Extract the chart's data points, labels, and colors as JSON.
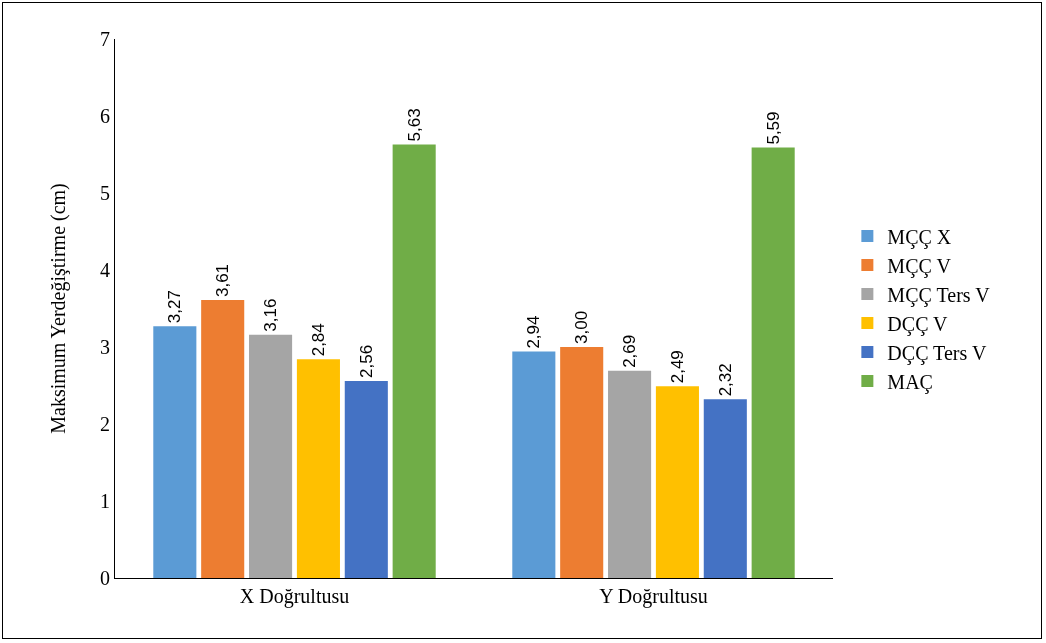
{
  "chart_data": {
    "type": "bar",
    "ylabel": "Maksimum Yerdeğiştirme (cm)",
    "categories": [
      "X Doğrultusu",
      "Y Doğrultusu"
    ],
    "series": [
      {
        "name": "MÇÇ X",
        "color": "#5b9bd5",
        "values": [
          3.27,
          2.94
        ],
        "value_labels": [
          "3,27",
          "2,94"
        ]
      },
      {
        "name": "MÇÇ V",
        "color": "#ed7d31",
        "values": [
          3.61,
          3.0
        ],
        "value_labels": [
          "3,61",
          "3,00"
        ]
      },
      {
        "name": "MÇÇ Ters V",
        "color": "#a5a5a5",
        "values": [
          3.16,
          2.69
        ],
        "value_labels": [
          "3,16",
          "2,69"
        ]
      },
      {
        "name": "DÇÇ V",
        "color": "#ffc000",
        "values": [
          2.84,
          2.49
        ],
        "value_labels": [
          "2,84",
          "2,49"
        ]
      },
      {
        "name": "DÇÇ Ters V",
        "color": "#4472c4",
        "values": [
          2.56,
          2.32
        ],
        "value_labels": [
          "2,56",
          "2,32"
        ]
      },
      {
        "name": "MAÇ",
        "color": "#70ad47",
        "values": [
          5.63,
          5.59
        ],
        "value_labels": [
          "5,63",
          "5,59"
        ]
      }
    ],
    "ylim": [
      0,
      7
    ],
    "yticks": [
      0,
      1,
      2,
      3,
      4,
      5,
      6,
      7
    ],
    "grid": false,
    "legend": "right"
  }
}
